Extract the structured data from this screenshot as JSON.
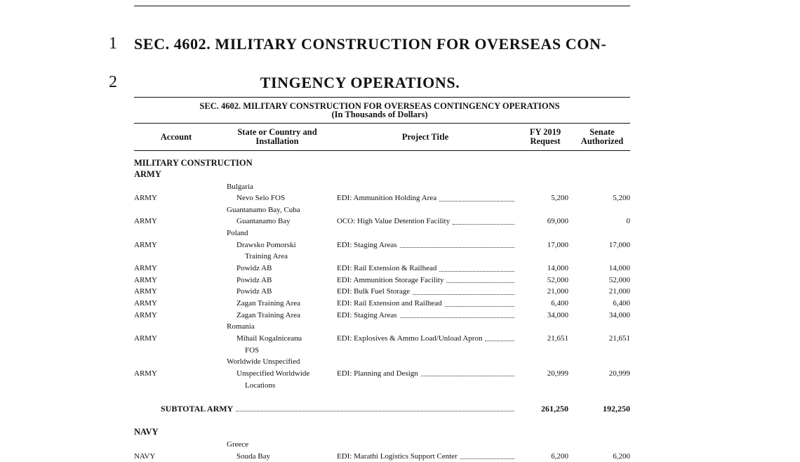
{
  "document": {
    "line_numbers": [
      "1",
      "2"
    ],
    "heading_lines": [
      "SEC. 4602. MILITARY CONSTRUCTION FOR OVERSEAS CON-",
      "TINGENCY OPERATIONS."
    ]
  },
  "table": {
    "title": "SEC. 4602. MILITARY CONSTRUCTION FOR OVERSEAS CONTINGENCY OPERATIONS",
    "subtitle": "(In Thousands of Dollars)",
    "columns": [
      [
        "Account"
      ],
      [
        "State or Country and",
        "Installation"
      ],
      [
        "Project Title"
      ],
      [
        "FY 2019",
        "Request"
      ],
      [
        "Senate",
        "Authorized"
      ]
    ],
    "group": "MILITARY CONSTRUCTION",
    "sections": [
      {
        "name": "ARMY",
        "rows": [
          {
            "country": "Bulgaria"
          },
          {
            "account": "ARMY",
            "installation": [
              "Nevo Selo FOS"
            ],
            "project": "EDI: Ammunition Holding Area",
            "request": "5,200",
            "authorized": "5,200"
          },
          {
            "country": "Guantanamo Bay, Cuba"
          },
          {
            "account": "ARMY",
            "installation": [
              "Guantanamo Bay"
            ],
            "project": "OCO: High Value Detention Facility",
            "request": "69,000",
            "authorized": "0"
          },
          {
            "country": "Poland"
          },
          {
            "account": "ARMY",
            "installation": [
              "Drawsko Pomorski",
              "Training Area"
            ],
            "project": "EDI: Staging Areas",
            "request": "17,000",
            "authorized": "17,000"
          },
          {
            "account": "ARMY",
            "installation": [
              "Powidz AB"
            ],
            "project": "EDI: Rail Extension & Railhead",
            "request": "14,000",
            "authorized": "14,000"
          },
          {
            "account": "ARMY",
            "installation": [
              "Powidz AB"
            ],
            "project": "EDI: Ammunition Storage Facility",
            "request": "52,000",
            "authorized": "52,000"
          },
          {
            "account": "ARMY",
            "installation": [
              "Powidz AB"
            ],
            "project": "EDI: Bulk Fuel Storage",
            "request": "21,000",
            "authorized": "21,000"
          },
          {
            "account": "ARMY",
            "installation": [
              "Zagan Training Area"
            ],
            "project": "EDI: Rail Extension and Railhead",
            "request": "6,400",
            "authorized": "6,400"
          },
          {
            "account": "ARMY",
            "installation": [
              "Zagan Training Area"
            ],
            "project": "EDI: Staging Areas",
            "request": "34,000",
            "authorized": "34,000"
          },
          {
            "country": "Romania"
          },
          {
            "account": "ARMY",
            "installation": [
              "Mihail Kogalniceanu",
              "FOS"
            ],
            "project": "EDI: Explosives & Ammo Load/Unload Apron",
            "request": "21,651",
            "authorized": "21,651"
          },
          {
            "country": "Worldwide Unspecified"
          },
          {
            "account": "ARMY",
            "installation": [
              "Unspecified Worldwide",
              "Locations"
            ],
            "project": "EDI: Planning and Design",
            "request": "20,999",
            "authorized": "20,999"
          }
        ],
        "subtotal": {
          "label": "SUBTOTAL ARMY",
          "request": "261,250",
          "authorized": "192,250"
        }
      },
      {
        "name": "NAVY",
        "rows": [
          {
            "country": "Greece"
          },
          {
            "account": "NAVY",
            "installation": [
              "Souda Bay"
            ],
            "project": "EDI: Marathi Logistics Support Center",
            "request": "6,200",
            "authorized": "6,200"
          }
        ]
      }
    ]
  }
}
